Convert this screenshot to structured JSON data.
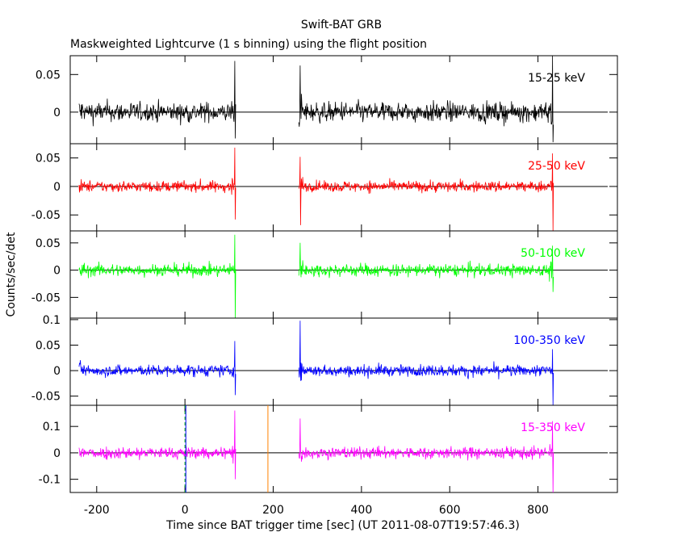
{
  "title": "Swift-BAT GRB",
  "subtitle": "Maskweighted Lightcurve (1 s binning) using the flight position",
  "chart_data": {
    "type": "line",
    "xlabel": "Time since BAT trigger time [sec] (UT 2011-08-07T19:57:46.3)",
    "ylabel": "Counts/sec/det",
    "xlim": [
      -260,
      980
    ],
    "xticks": [
      "-200",
      "0",
      "200",
      "400",
      "600",
      "800"
    ],
    "x_tick_values": [
      -200,
      0,
      200,
      400,
      600,
      800
    ],
    "data_segments": [
      [
        -240,
        115
      ],
      [
        258,
        835
      ]
    ],
    "markers": [
      {
        "name": "trigger-line",
        "x": 0,
        "color": "#00aa00",
        "style": "dashed"
      },
      {
        "name": "t0-marker",
        "x": 2,
        "color": "#0000ff",
        "style": "solid"
      },
      {
        "name": "orange-marker",
        "x": 188,
        "color": "#ff8000",
        "style": "solid"
      }
    ],
    "panels": [
      {
        "label": "15-25 keV",
        "color": "#000000",
        "ylim": [
          -0.042,
          0.075
        ],
        "yticks": [
          "0.05",
          "0"
        ],
        "ytick_values": [
          0.05,
          0
        ],
        "noise_rms": 0.008,
        "spikes": [
          {
            "t": 113,
            "v": 0.068
          },
          {
            "t": 114,
            "v": -0.035
          },
          {
            "t": 261,
            "v": 0.062
          },
          {
            "t": 833,
            "v": 0.075
          },
          {
            "t": 834,
            "v": -0.04
          }
        ]
      },
      {
        "label": "25-50 keV",
        "color": "#ff0000",
        "ylim": [
          -0.078,
          0.075
        ],
        "yticks": [
          "0.05",
          "0",
          "-0.05"
        ],
        "ytick_values": [
          0.05,
          0,
          -0.05
        ],
        "noise_rms": 0.006,
        "spikes": [
          {
            "t": 113,
            "v": 0.068
          },
          {
            "t": 114,
            "v": -0.058
          },
          {
            "t": 261,
            "v": 0.052
          },
          {
            "t": 262,
            "v": -0.068
          },
          {
            "t": 833,
            "v": 0.058
          },
          {
            "t": 834,
            "v": -0.078
          }
        ]
      },
      {
        "label": "50-100 keV",
        "color": "#00ff00",
        "ylim": [
          -0.088,
          0.072
        ],
        "yticks": [
          "0.05",
          "0",
          "-0.05"
        ],
        "ytick_values": [
          0.05,
          0,
          -0.05
        ],
        "noise_rms": 0.007,
        "spikes": [
          {
            "t": 113,
            "v": 0.065
          },
          {
            "t": 114,
            "v": -0.088
          },
          {
            "t": 261,
            "v": 0.05
          },
          {
            "t": 833,
            "v": 0.045
          },
          {
            "t": 834,
            "v": -0.04
          }
        ]
      },
      {
        "label": "100-350 keV",
        "color": "#0000ff",
        "ylim": [
          -0.068,
          0.103
        ],
        "yticks": [
          "0.1",
          "0.05",
          "0",
          "-0.05"
        ],
        "ytick_values": [
          0.1,
          0.05,
          0,
          -0.05
        ],
        "noise_rms": 0.007,
        "spikes": [
          {
            "t": 113,
            "v": 0.058
          },
          {
            "t": 114,
            "v": -0.048
          },
          {
            "t": 261,
            "v": 0.098
          },
          {
            "t": 262,
            "v": -0.02
          },
          {
            "t": 833,
            "v": 0.042
          },
          {
            "t": 834,
            "v": -0.068
          }
        ]
      },
      {
        "label": "15-350 keV",
        "color": "#ff00ff",
        "ylim": [
          -0.15,
          0.18
        ],
        "yticks": [
          "0.1",
          "0",
          "-0.1"
        ],
        "ytick_values": [
          0.1,
          0,
          -0.1
        ],
        "noise_rms": 0.014,
        "spikes": [
          {
            "t": 113,
            "v": 0.16
          },
          {
            "t": 114,
            "v": -0.1
          },
          {
            "t": 261,
            "v": 0.13
          },
          {
            "t": 833,
            "v": 0.12
          },
          {
            "t": 834,
            "v": -0.15
          }
        ]
      }
    ]
  }
}
